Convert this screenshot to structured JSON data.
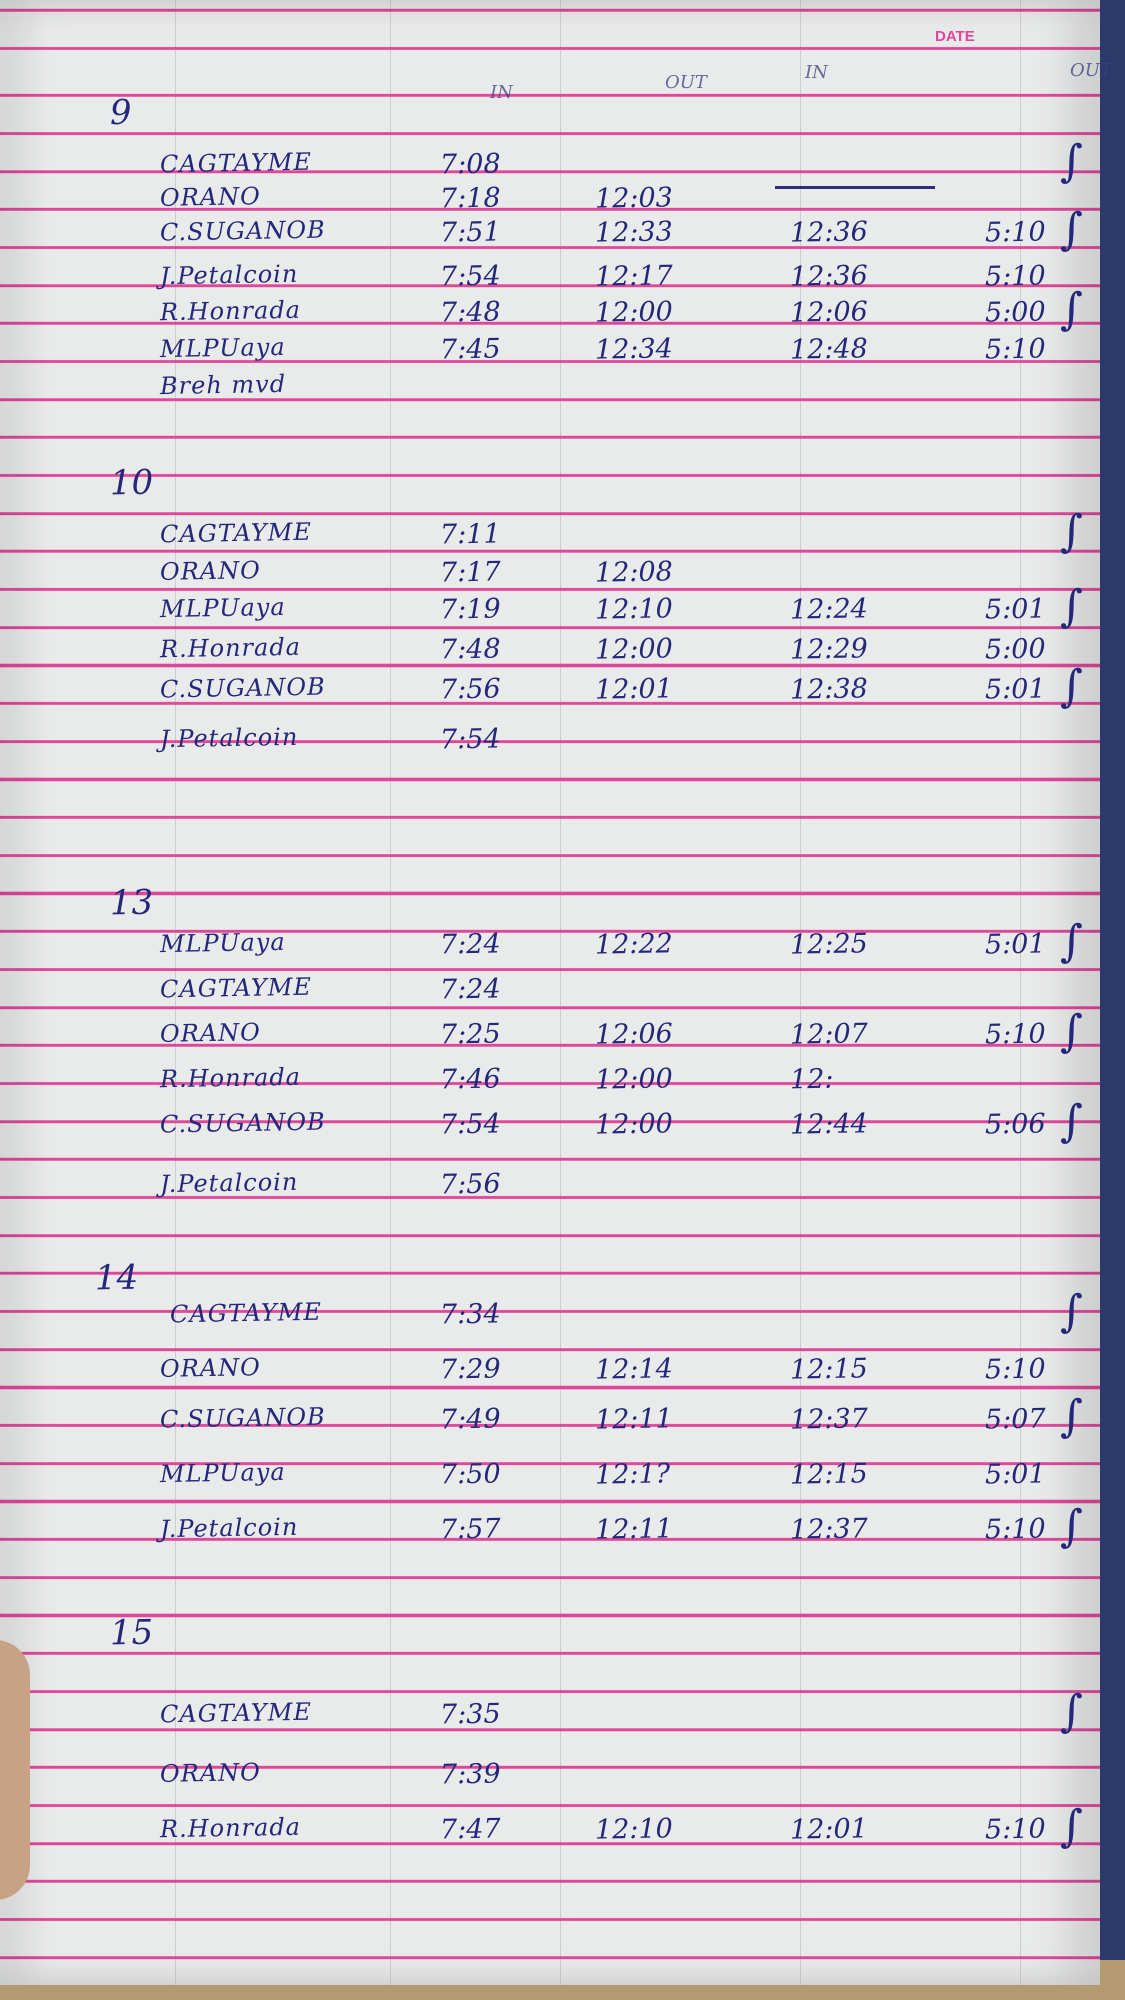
{
  "header": {
    "date_label": "DATE",
    "columns": [
      "IN",
      "OUT",
      "IN",
      "OUT"
    ]
  },
  "sections": [
    {
      "date": "9",
      "rows": [
        {
          "name": "CAGTAYME",
          "am_in": "7:08",
          "am_out": "",
          "pm_in": "",
          "pm_out": ""
        },
        {
          "name": "ORANO",
          "am_in": "7:18",
          "am_out": "12:03",
          "pm_in": "",
          "pm_out": ""
        },
        {
          "name": "C.SUGANOB",
          "am_in": "7:51",
          "am_out": "12:33",
          "pm_in": "12:36",
          "pm_out": "5:10"
        },
        {
          "name": "J.Petalcoin",
          "am_in": "7:54",
          "am_out": "12:17",
          "pm_in": "12:36",
          "pm_out": "5:10"
        },
        {
          "name": "R.Honrada",
          "am_in": "7:48",
          "am_out": "12:00",
          "pm_in": "12:06",
          "pm_out": "5:00"
        },
        {
          "name": "MLPUaya",
          "am_in": "7:45",
          "am_out": "12:34",
          "pm_in": "12:48",
          "pm_out": "5:10"
        },
        {
          "name": "Breh mvd",
          "am_in": "",
          "am_out": "",
          "pm_in": "",
          "pm_out": ""
        }
      ]
    },
    {
      "date": "10",
      "rows": [
        {
          "name": "CAGTAYME",
          "am_in": "7:11",
          "am_out": "",
          "pm_in": "",
          "pm_out": ""
        },
        {
          "name": "ORANO",
          "am_in": "7:17",
          "am_out": "12:08",
          "pm_in": "",
          "pm_out": ""
        },
        {
          "name": "MLPUaya",
          "am_in": "7:19",
          "am_out": "12:10",
          "pm_in": "12:24",
          "pm_out": "5:01"
        },
        {
          "name": "R.Honrada",
          "am_in": "7:48",
          "am_out": "12:00",
          "pm_in": "12:29",
          "pm_out": "5:00"
        },
        {
          "name": "C.SUGANOB",
          "am_in": "7:56",
          "am_out": "12:01",
          "pm_in": "12:38",
          "pm_out": "5:01"
        },
        {
          "name": "J.Petalcoin",
          "am_in": "7:54",
          "am_out": "",
          "pm_in": "",
          "pm_out": ""
        }
      ]
    },
    {
      "date": "13",
      "rows": [
        {
          "name": "MLPUaya",
          "am_in": "7:24",
          "am_out": "12:22",
          "pm_in": "12:25",
          "pm_out": "5:01"
        },
        {
          "name": "CAGTAYME",
          "am_in": "7:24",
          "am_out": "",
          "pm_in": "",
          "pm_out": ""
        },
        {
          "name": "ORANO",
          "am_in": "7:25",
          "am_out": "12:06",
          "pm_in": "12:07",
          "pm_out": "5:10"
        },
        {
          "name": "R.Honrada",
          "am_in": "7:46",
          "am_out": "12:00",
          "pm_in": "12:",
          "pm_out": ""
        },
        {
          "name": "C.SUGANOB",
          "am_in": "7:54",
          "am_out": "12:00",
          "pm_in": "12:44",
          "pm_out": "5:06"
        },
        {
          "name": "J.Petalcoin",
          "am_in": "7:56",
          "am_out": "",
          "pm_in": "",
          "pm_out": ""
        }
      ]
    },
    {
      "date": "14",
      "rows": [
        {
          "name": "CAGTAYME",
          "am_in": "7:34",
          "am_out": "",
          "pm_in": "",
          "pm_out": ""
        },
        {
          "name": "ORANO",
          "am_in": "7:29",
          "am_out": "12:14",
          "pm_in": "12:15",
          "pm_out": "5:10"
        },
        {
          "name": "C.SUGANOB",
          "am_in": "7:49",
          "am_out": "12:11",
          "pm_in": "12:37",
          "pm_out": "5:07"
        },
        {
          "name": "MLPUaya",
          "am_in": "7:50",
          "am_out": "12:1?",
          "pm_in": "12:15",
          "pm_out": "5:01"
        },
        {
          "name": "J.Petalcoin",
          "am_in": "7:57",
          "am_out": "12:11",
          "pm_in": "12:37",
          "pm_out": "5:10"
        }
      ]
    },
    {
      "date": "15",
      "rows": [
        {
          "name": "CAGTAYME",
          "am_in": "7:35",
          "am_out": "",
          "pm_in": "",
          "pm_out": ""
        },
        {
          "name": "ORANO",
          "am_in": "7:39",
          "am_out": "",
          "pm_in": "",
          "pm_out": ""
        },
        {
          "name": "R.Honrada",
          "am_in": "7:47",
          "am_out": "12:10",
          "pm_in": "12:01",
          "pm_out": "5:10"
        }
      ]
    }
  ],
  "colors": {
    "ink": "#23287a",
    "rule": "#e0479a",
    "paper": "#e9eaea"
  }
}
